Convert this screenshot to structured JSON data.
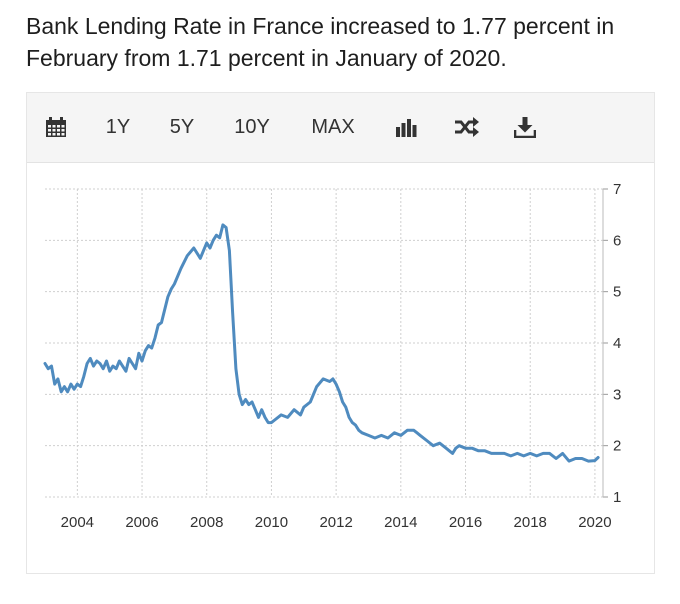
{
  "headline": "Bank Lending Rate in France increased to 1.77 percent in February from 1.71 percent in January of 2020.",
  "toolbar": {
    "ranges": [
      "1Y",
      "5Y",
      "10Y",
      "MAX"
    ],
    "icons": [
      "calendar-icon",
      "bar-chart-icon",
      "shuffle-icon",
      "download-icon"
    ]
  },
  "colors": {
    "line": "#4f8bbf",
    "grid": "#cfcfcf",
    "toolbar_bg": "#f5f5f5"
  },
  "chart_data": {
    "type": "line",
    "title": "",
    "xlabel": "",
    "ylabel": "",
    "xlim": [
      2003,
      2020.25
    ],
    "ylim": [
      1,
      7
    ],
    "x_ticks": [
      2004,
      2006,
      2008,
      2010,
      2012,
      2014,
      2016,
      2018,
      2020
    ],
    "y_ticks": [
      1,
      2,
      3,
      4,
      5,
      6,
      7
    ],
    "grid": true,
    "series": [
      {
        "name": "",
        "x": [
          2003.0,
          2003.1,
          2003.2,
          2003.3,
          2003.4,
          2003.5,
          2003.6,
          2003.7,
          2003.8,
          2003.9,
          2004.0,
          2004.1,
          2004.2,
          2004.3,
          2004.4,
          2004.5,
          2004.6,
          2004.7,
          2004.8,
          2004.9,
          2005.0,
          2005.1,
          2005.2,
          2005.3,
          2005.4,
          2005.5,
          2005.6,
          2005.7,
          2005.8,
          2005.9,
          2006.0,
          2006.1,
          2006.2,
          2006.3,
          2006.4,
          2006.5,
          2006.6,
          2006.7,
          2006.8,
          2006.9,
          2007.0,
          2007.2,
          2007.4,
          2007.6,
          2007.8,
          2008.0,
          2008.1,
          2008.2,
          2008.3,
          2008.4,
          2008.5,
          2008.6,
          2008.7,
          2008.8,
          2008.9,
          2009.0,
          2009.1,
          2009.2,
          2009.3,
          2009.4,
          2009.5,
          2009.6,
          2009.7,
          2009.8,
          2009.9,
          2010.0,
          2010.1,
          2010.3,
          2010.5,
          2010.7,
          2010.9,
          2011.0,
          2011.2,
          2011.4,
          2011.6,
          2011.8,
          2011.9,
          2012.0,
          2012.1,
          2012.2,
          2012.3,
          2012.4,
          2012.5,
          2012.6,
          2012.7,
          2012.8,
          2013.0,
          2013.2,
          2013.4,
          2013.6,
          2013.8,
          2014.0,
          2014.2,
          2014.4,
          2014.5,
          2014.6,
          2014.8,
          2015.0,
          2015.2,
          2015.4,
          2015.5,
          2015.6,
          2015.7,
          2015.8,
          2016.0,
          2016.2,
          2016.4,
          2016.6,
          2016.8,
          2017.0,
          2017.2,
          2017.4,
          2017.6,
          2017.8,
          2018.0,
          2018.2,
          2018.4,
          2018.6,
          2018.8,
          2019.0,
          2019.2,
          2019.4,
          2019.6,
          2019.8,
          2020.0,
          2020.1
        ],
        "y": [
          3.6,
          3.5,
          3.55,
          3.2,
          3.3,
          3.05,
          3.15,
          3.05,
          3.2,
          3.1,
          3.2,
          3.15,
          3.35,
          3.6,
          3.7,
          3.55,
          3.65,
          3.6,
          3.5,
          3.65,
          3.45,
          3.55,
          3.5,
          3.65,
          3.55,
          3.45,
          3.7,
          3.6,
          3.5,
          3.8,
          3.65,
          3.85,
          3.95,
          3.9,
          4.1,
          4.35,
          4.4,
          4.65,
          4.9,
          5.05,
          5.15,
          5.45,
          5.7,
          5.85,
          5.65,
          5.95,
          5.85,
          6.0,
          6.1,
          6.05,
          6.3,
          6.25,
          5.8,
          4.6,
          3.5,
          3.0,
          2.8,
          2.9,
          2.8,
          2.85,
          2.7,
          2.55,
          2.7,
          2.55,
          2.45,
          2.45,
          2.5,
          2.6,
          2.55,
          2.7,
          2.6,
          2.75,
          2.85,
          3.15,
          3.3,
          3.25,
          3.3,
          3.2,
          3.05,
          2.85,
          2.75,
          2.55,
          2.45,
          2.4,
          2.3,
          2.25,
          2.2,
          2.15,
          2.2,
          2.15,
          2.25,
          2.2,
          2.3,
          2.3,
          2.25,
          2.2,
          2.1,
          2.0,
          2.05,
          1.95,
          1.9,
          1.85,
          1.95,
          2.0,
          1.95,
          1.95,
          1.9,
          1.9,
          1.85,
          1.85,
          1.85,
          1.8,
          1.85,
          1.8,
          1.85,
          1.8,
          1.85,
          1.85,
          1.75,
          1.85,
          1.7,
          1.75,
          1.75,
          1.7,
          1.71,
          1.77
        ]
      }
    ]
  }
}
